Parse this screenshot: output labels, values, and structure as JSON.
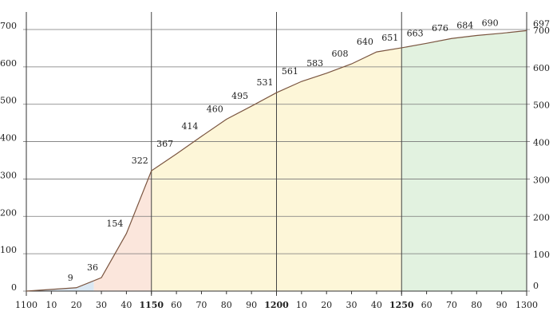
{
  "chart_data": {
    "type": "area",
    "color": "#7a5540",
    "x": [
      1100,
      1120,
      1130,
      1140,
      1150,
      1160,
      1170,
      1180,
      1190,
      1200,
      1210,
      1220,
      1230,
      1240,
      1250,
      1260,
      1270,
      1280,
      1290,
      1300
    ],
    "values": [
      0,
      9,
      36,
      154,
      322,
      367,
      414,
      460,
      495,
      531,
      561,
      583,
      608,
      640,
      651,
      663,
      676,
      684,
      690,
      697
    ],
    "xlim": [
      1100,
      1300
    ],
    "ylim": [
      0,
      700
    ],
    "xticks": [
      {
        "value": 1100,
        "label": "1100"
      },
      {
        "value": 1110,
        "label": "10"
      },
      {
        "value": 1120,
        "label": "20"
      },
      {
        "value": 1130,
        "label": "30"
      },
      {
        "value": 1140,
        "label": "40"
      },
      {
        "value": 1150,
        "label": "1150"
      },
      {
        "value": 1160,
        "label": "60"
      },
      {
        "value": 1170,
        "label": "70"
      },
      {
        "value": 1180,
        "label": "80"
      },
      {
        "value": 1190,
        "label": "90"
      },
      {
        "value": 1200,
        "label": "1200"
      },
      {
        "value": 1210,
        "label": "10"
      },
      {
        "value": 1220,
        "label": "20"
      },
      {
        "value": 1230,
        "label": "30"
      },
      {
        "value": 1240,
        "label": "40"
      },
      {
        "value": 1250,
        "label": "1250"
      },
      {
        "value": 1260,
        "label": "60"
      },
      {
        "value": 1270,
        "label": "70"
      },
      {
        "value": 1280,
        "label": "80"
      },
      {
        "value": 1290,
        "label": "90"
      },
      {
        "value": 1300,
        "label": "1300"
      }
    ],
    "major_xticks": [
      1150,
      1200,
      1250
    ],
    "yticks": [
      0,
      100,
      200,
      300,
      400,
      500,
      600,
      700
    ],
    "grid": true,
    "bands": [
      {
        "from": 1100,
        "to": 1127,
        "color": "#dbe8f3"
      },
      {
        "from": 1127,
        "to": 1150,
        "color": "#fbe6dc"
      },
      {
        "from": 1150,
        "to": 1250,
        "color": "#fdf6d8"
      },
      {
        "from": 1250,
        "to": 1300,
        "color": "#e2f2e0"
      }
    ]
  }
}
